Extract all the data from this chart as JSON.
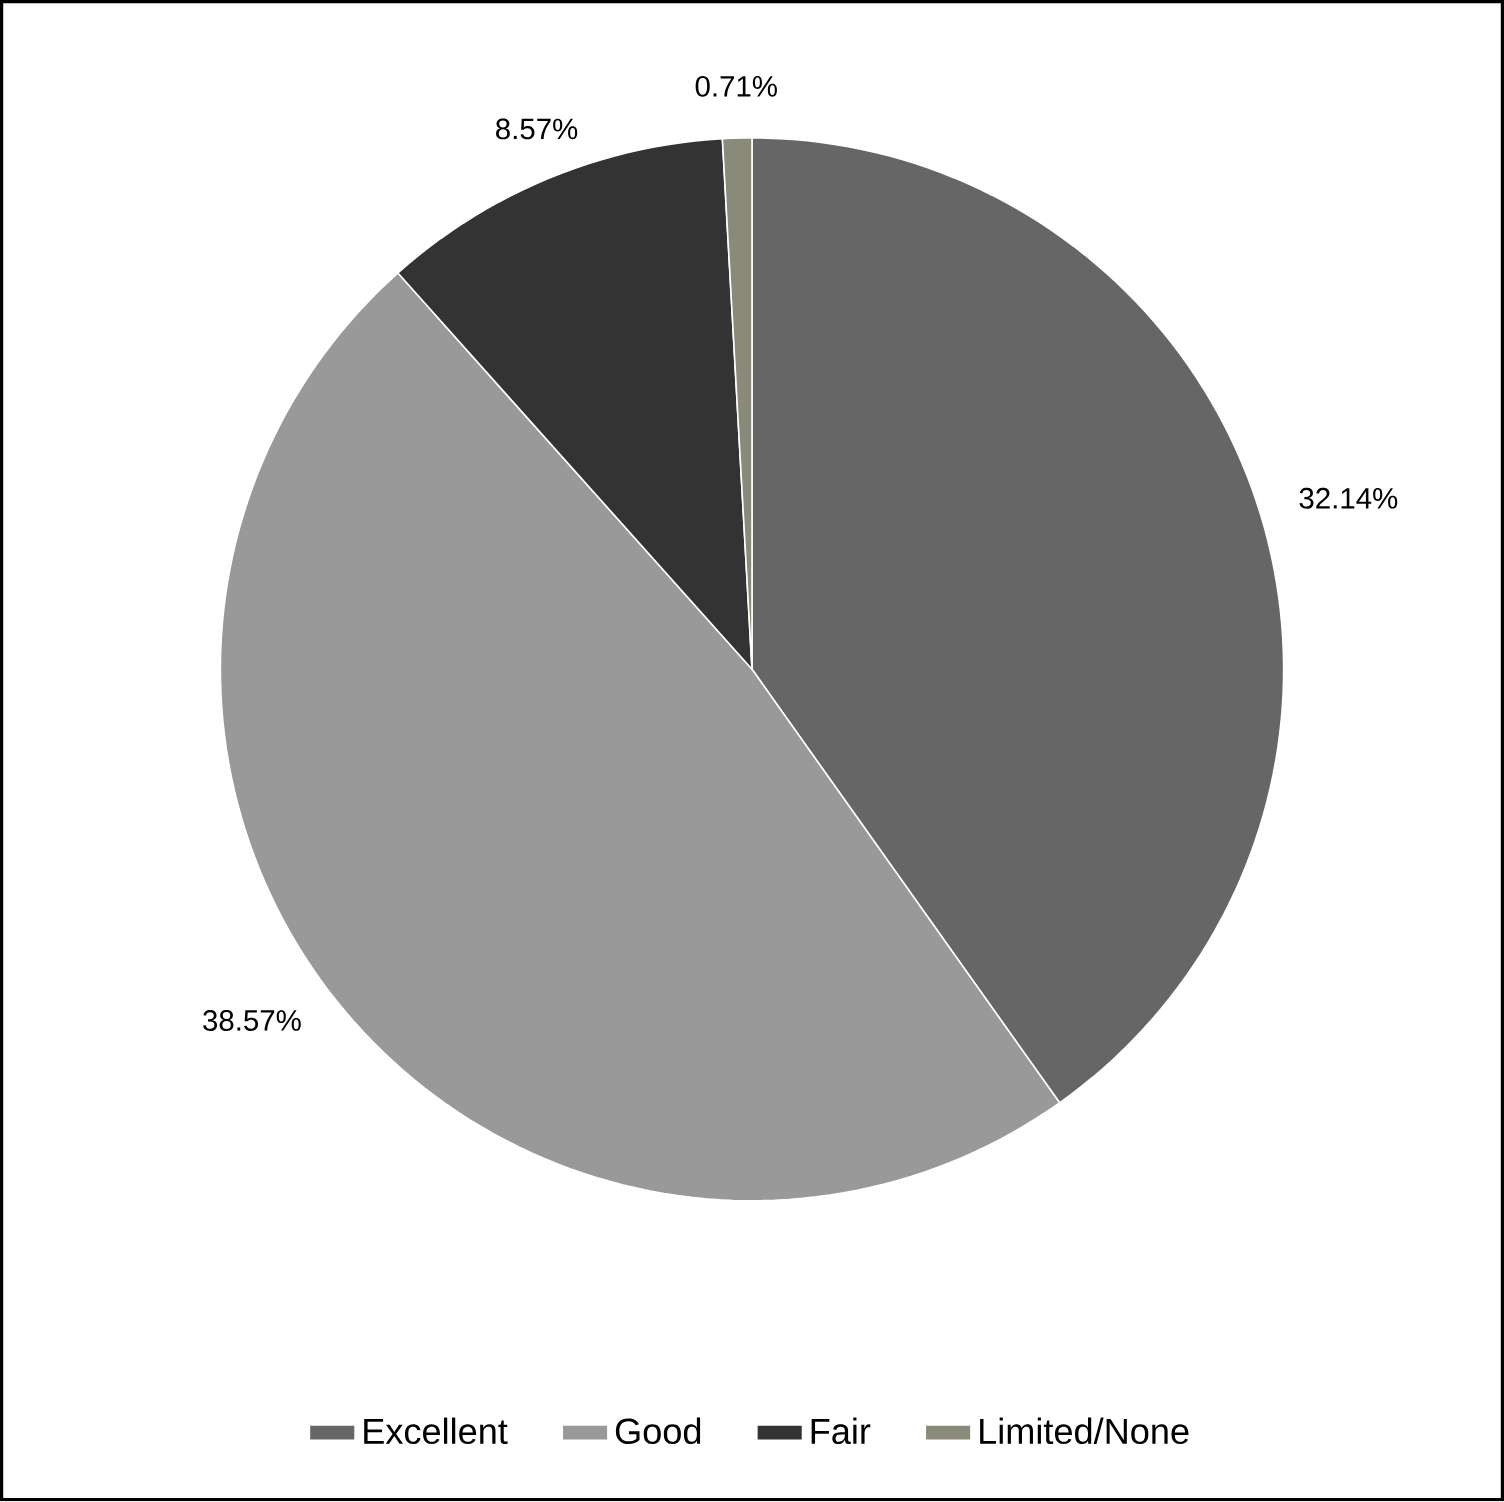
{
  "chart_data": {
    "type": "pie",
    "categories": [
      "Excellent",
      "Good",
      "Fair",
      "Limited/None"
    ],
    "values": [
      32.14,
      38.57,
      8.57,
      0.71
    ],
    "colors": [
      "#666666",
      "#999999",
      "#333333",
      "#8a8a7a"
    ],
    "value_labels": [
      "32.14%",
      "38.57%",
      "8.57%",
      "0.71%"
    ],
    "legend": "bottom"
  }
}
